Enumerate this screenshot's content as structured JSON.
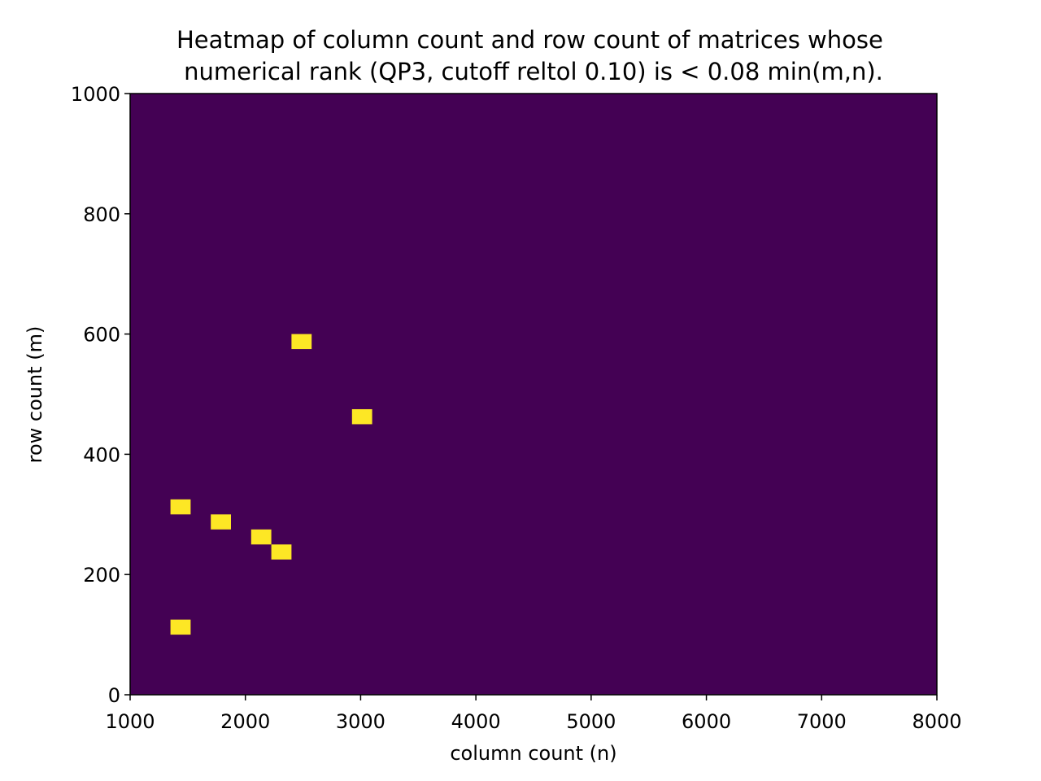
{
  "chart_data": {
    "type": "heatmap",
    "title": "Heatmap of column count and row count of matrices whose\nnumerical rank (QP3, cutoff reltol 0.10) is < 0.08 min(m,n).",
    "title_lines": [
      "Heatmap of column count and row count of matrices whose",
      "numerical rank (QP3, cutoff reltol 0.10) is < 0.08 min(m,n)."
    ],
    "xlabel": "column count (n)",
    "ylabel": "row count (m)",
    "xlim": [
      1000,
      8000
    ],
    "ylim": [
      0,
      1000
    ],
    "xticks": [
      1000,
      2000,
      3000,
      4000,
      5000,
      6000,
      7000,
      8000
    ],
    "yticks": [
      0,
      200,
      400,
      600,
      800,
      1000
    ],
    "grid": false,
    "colormap": "viridis",
    "background_value": 0,
    "background_color": "#440154",
    "cell_color": "#fde725",
    "cell_size": {
      "dx": 175,
      "dy": 25
    },
    "cells": [
      {
        "x0": 2400,
        "y0": 575,
        "value": 1
      },
      {
        "x0": 2925,
        "y0": 450,
        "value": 1
      },
      {
        "x0": 1350,
        "y0": 300,
        "value": 1
      },
      {
        "x0": 1700,
        "y0": 275,
        "value": 1
      },
      {
        "x0": 2050,
        "y0": 250,
        "value": 1
      },
      {
        "x0": 2225,
        "y0": 225,
        "value": 1
      },
      {
        "x0": 1350,
        "y0": 100,
        "value": 1
      }
    ]
  }
}
